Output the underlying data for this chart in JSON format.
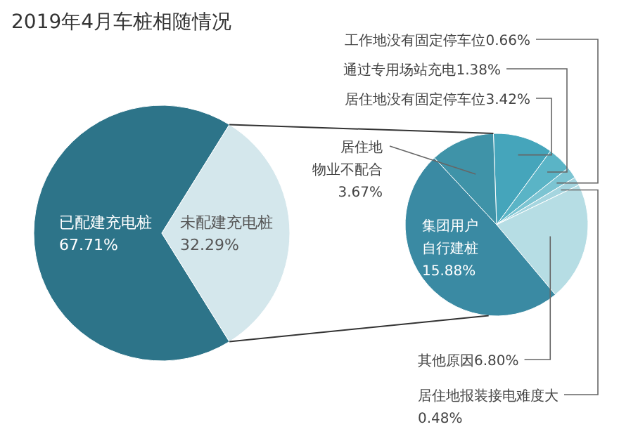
{
  "chart_data": [
    {
      "type": "pie",
      "title": "2019年4月车桩相随情况",
      "categories": [
        "已配建充电桩",
        "未配建充电桩"
      ],
      "values": [
        67.71,
        32.29
      ],
      "colors": [
        "#2d7489",
        "#d4e7ec"
      ],
      "value_labels": [
        "67.71%",
        "32.29%"
      ]
    },
    {
      "type": "pie",
      "categories": [
        "居住地没有固定停车位",
        "通过专用场站充电",
        "工作地没有固定停车位",
        "居住地报装接电难度大",
        "其他原因",
        "集团用户自行建桩",
        "居住地物业不配合"
      ],
      "values": [
        3.42,
        1.38,
        0.66,
        0.48,
        6.8,
        15.88,
        3.67
      ],
      "colors": [
        "#45a5bb",
        "#5ab4c6",
        "#7cc4d2",
        "#a5d5df",
        "#b6dde4",
        "#3a8aa3",
        "#3f93a8"
      ],
      "value_labels": [
        "3.42%",
        "1.38%",
        "0.66%",
        "0.48%",
        "6.80%",
        "15.88%",
        "3.67%"
      ]
    }
  ]
}
